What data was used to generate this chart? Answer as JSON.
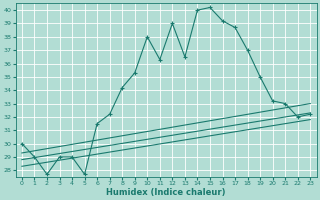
{
  "xlabel": "Humidex (Indice chaleur)",
  "bg_color": "#b2ddd4",
  "grid_color": "#ffffff",
  "line_color": "#1a7a6e",
  "xlim": [
    -0.5,
    23.5
  ],
  "ylim": [
    27.5,
    40.5
  ],
  "xticks": [
    0,
    1,
    2,
    3,
    4,
    5,
    6,
    7,
    8,
    9,
    10,
    11,
    12,
    13,
    14,
    15,
    16,
    17,
    18,
    19,
    20,
    21,
    22,
    23
  ],
  "yticks": [
    28,
    29,
    30,
    31,
    32,
    33,
    34,
    35,
    36,
    37,
    38,
    39,
    40
  ],
  "main_x": [
    0,
    1,
    2,
    3,
    4,
    5,
    6,
    7,
    8,
    9,
    10,
    11,
    12,
    13,
    14,
    15,
    16,
    17,
    18,
    19,
    20,
    21,
    22,
    23
  ],
  "main_y": [
    30.0,
    29.0,
    27.7,
    29.0,
    29.0,
    27.7,
    31.5,
    32.2,
    34.2,
    35.3,
    38.0,
    36.3,
    39.0,
    36.5,
    40.0,
    40.2,
    39.2,
    38.7,
    37.0,
    35.0,
    33.2,
    33.0,
    32.0,
    32.2
  ],
  "line1_x": [
    0,
    23
  ],
  "line1_y": [
    29.3,
    33.0
  ],
  "line2_x": [
    0,
    23
  ],
  "line2_y": [
    28.8,
    32.3
  ],
  "line3_x": [
    0,
    23
  ],
  "line3_y": [
    28.3,
    31.8
  ],
  "tick_fontsize": 4.5,
  "xlabel_fontsize": 6.0
}
